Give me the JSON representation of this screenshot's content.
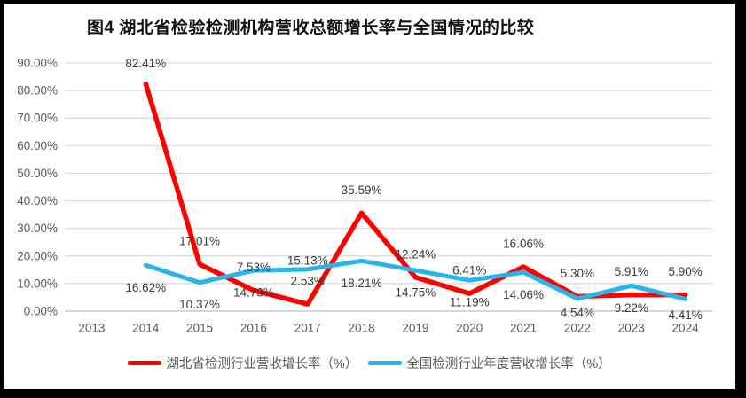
{
  "figure": {
    "title": "图4 湖北省检验检测机构营收总额增长率与全国情况的比较"
  },
  "chart_data": {
    "type": "line",
    "title": "图4 湖北省检验检测机构营收总额增长率与全国情况的比较",
    "categories": [
      "2013",
      "2014",
      "2015",
      "2016",
      "2017",
      "2018",
      "2019",
      "2020",
      "2021",
      "2022",
      "2023",
      "2024"
    ],
    "series": [
      {
        "name": "湖北省检测行业营收增长率（%）",
        "color": "#ff0000",
        "values": [
          null,
          82.41,
          17.01,
          7.53,
          2.53,
          35.59,
          12.24,
          6.41,
          16.06,
          5.3,
          5.91,
          5.9
        ]
      },
      {
        "name": "全国检测行业年度营收增长率（%）",
        "color": "#29b5e8",
        "values": [
          null,
          16.62,
          10.37,
          14.73,
          15.13,
          18.21,
          14.75,
          11.19,
          14.06,
          4.54,
          9.22,
          4.41
        ]
      }
    ],
    "y_axis": {
      "min": 0,
      "max": 90,
      "step": 10,
      "tick_labels": [
        "0.00%",
        "10.00%",
        "20.00%",
        "30.00%",
        "40.00%",
        "50.00%",
        "60.00%",
        "70.00%",
        "80.00%",
        "90.00%"
      ]
    },
    "x_axis_label": "",
    "y_axis_label": "",
    "grid": true,
    "legend_position": "bottom",
    "data_label_format": "0.00%"
  },
  "colors": {
    "grid": "#d9d9d9",
    "baseline": "#bfbfbf",
    "axis_text": "#595959",
    "data_label_text": "#3b3b3b",
    "frame": "#000000",
    "background": "#ffffff"
  }
}
